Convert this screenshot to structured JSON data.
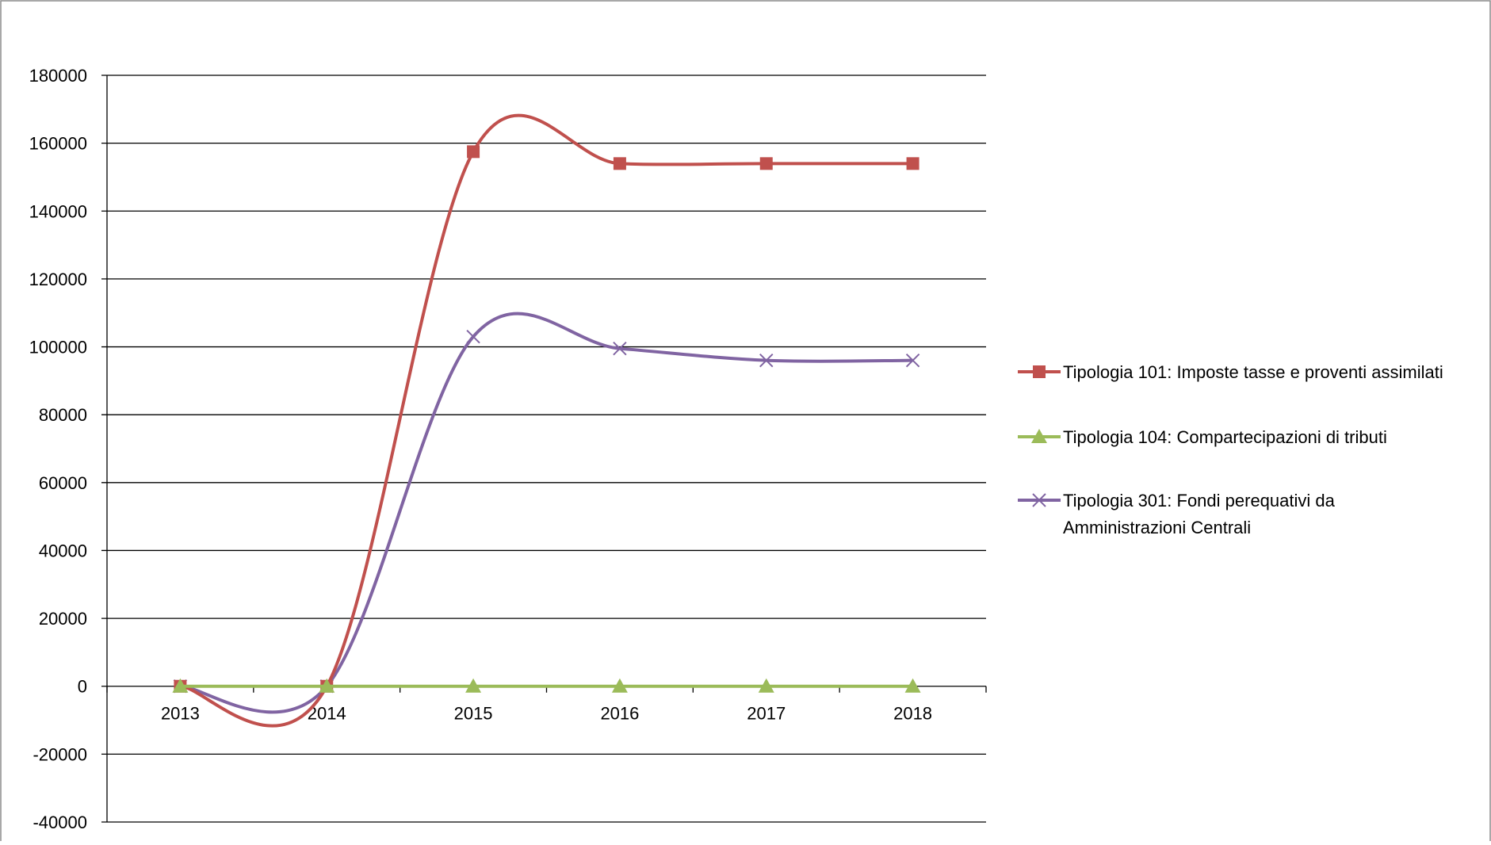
{
  "chart_data": {
    "type": "line",
    "title": "",
    "xlabel": "",
    "ylabel": "",
    "categories": [
      "2013",
      "2014",
      "2015",
      "2016",
      "2017",
      "2018"
    ],
    "ylim": [
      -40000,
      180000
    ],
    "yticks": [
      -40000,
      -20000,
      0,
      20000,
      40000,
      60000,
      80000,
      100000,
      120000,
      140000,
      160000,
      180000
    ],
    "grid": "horizontal",
    "smooth": true,
    "legend": "right",
    "series": [
      {
        "name": "Tipologia 101: Imposte tasse e proventi assimilati",
        "values": [
          0,
          0,
          157500,
          154000,
          154000,
          154000
        ],
        "color": "#c0504d",
        "marker": "square"
      },
      {
        "name": "Tipologia 104: Compartecipazioni di tributi",
        "values": [
          0,
          0,
          0,
          0,
          0,
          0
        ],
        "color": "#9bbb59",
        "marker": "triangle"
      },
      {
        "name": "Tipologia 301: Fondi perequativi da Amministrazioni Centrali",
        "name_lines": [
          "Tipologia 301: Fondi perequativi da",
          "Amministrazioni Centrali"
        ],
        "values": [
          0,
          0,
          103000,
          99500,
          96000,
          96000
        ],
        "color": "#8064a2",
        "marker": "x"
      }
    ]
  }
}
